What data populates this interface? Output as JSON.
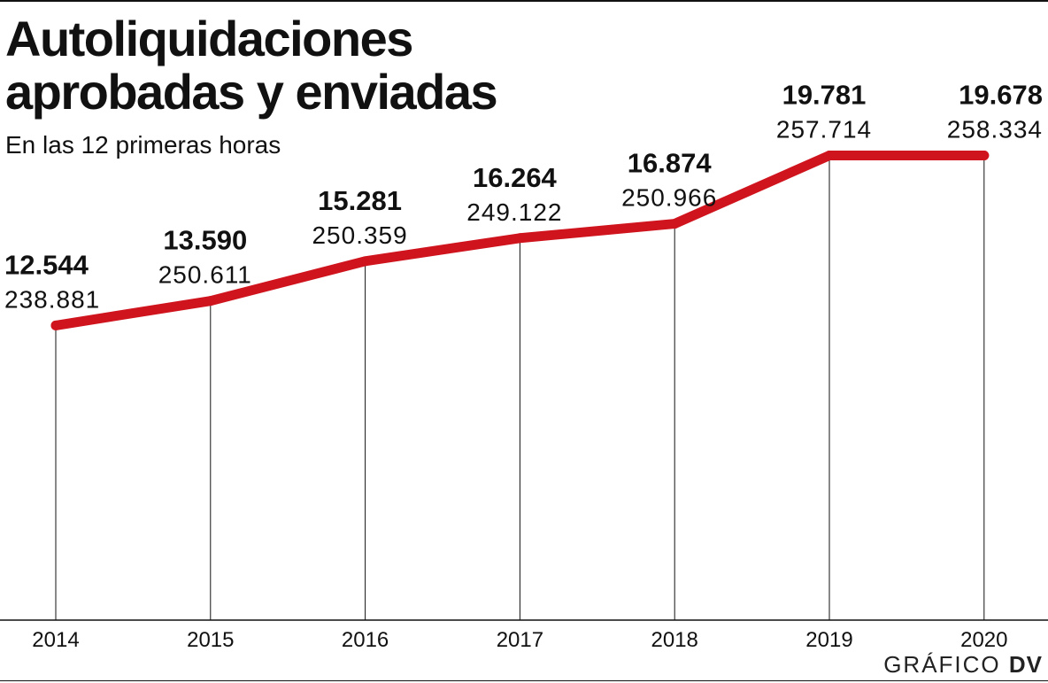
{
  "chart_data": {
    "type": "line",
    "title_lines": [
      "Autoliquidaciones",
      "aprobadas y enviadas"
    ],
    "subtitle": "En las 12 primeras horas",
    "categories": [
      "2014",
      "2015",
      "2016",
      "2017",
      "2018",
      "2019",
      "2020"
    ],
    "series": [
      {
        "values": [
          12544,
          13590,
          15281,
          16264,
          16874,
          19781,
          19678
        ],
        "labels": [
          "12.544",
          "13.590",
          "15.281",
          "16.264",
          "16.874",
          "19.781",
          "19.678"
        ]
      }
    ],
    "secondary_labels": [
      "238.881",
      "250.611",
      "250.359",
      "249.122",
      "250.966",
      "257.714",
      "258.334"
    ],
    "ylim": [
      0,
      26400
    ],
    "grid": false,
    "line_color": "#d0141e"
  },
  "credit": {
    "prefix": "GRÁFICO ",
    "brand": "DV"
  }
}
